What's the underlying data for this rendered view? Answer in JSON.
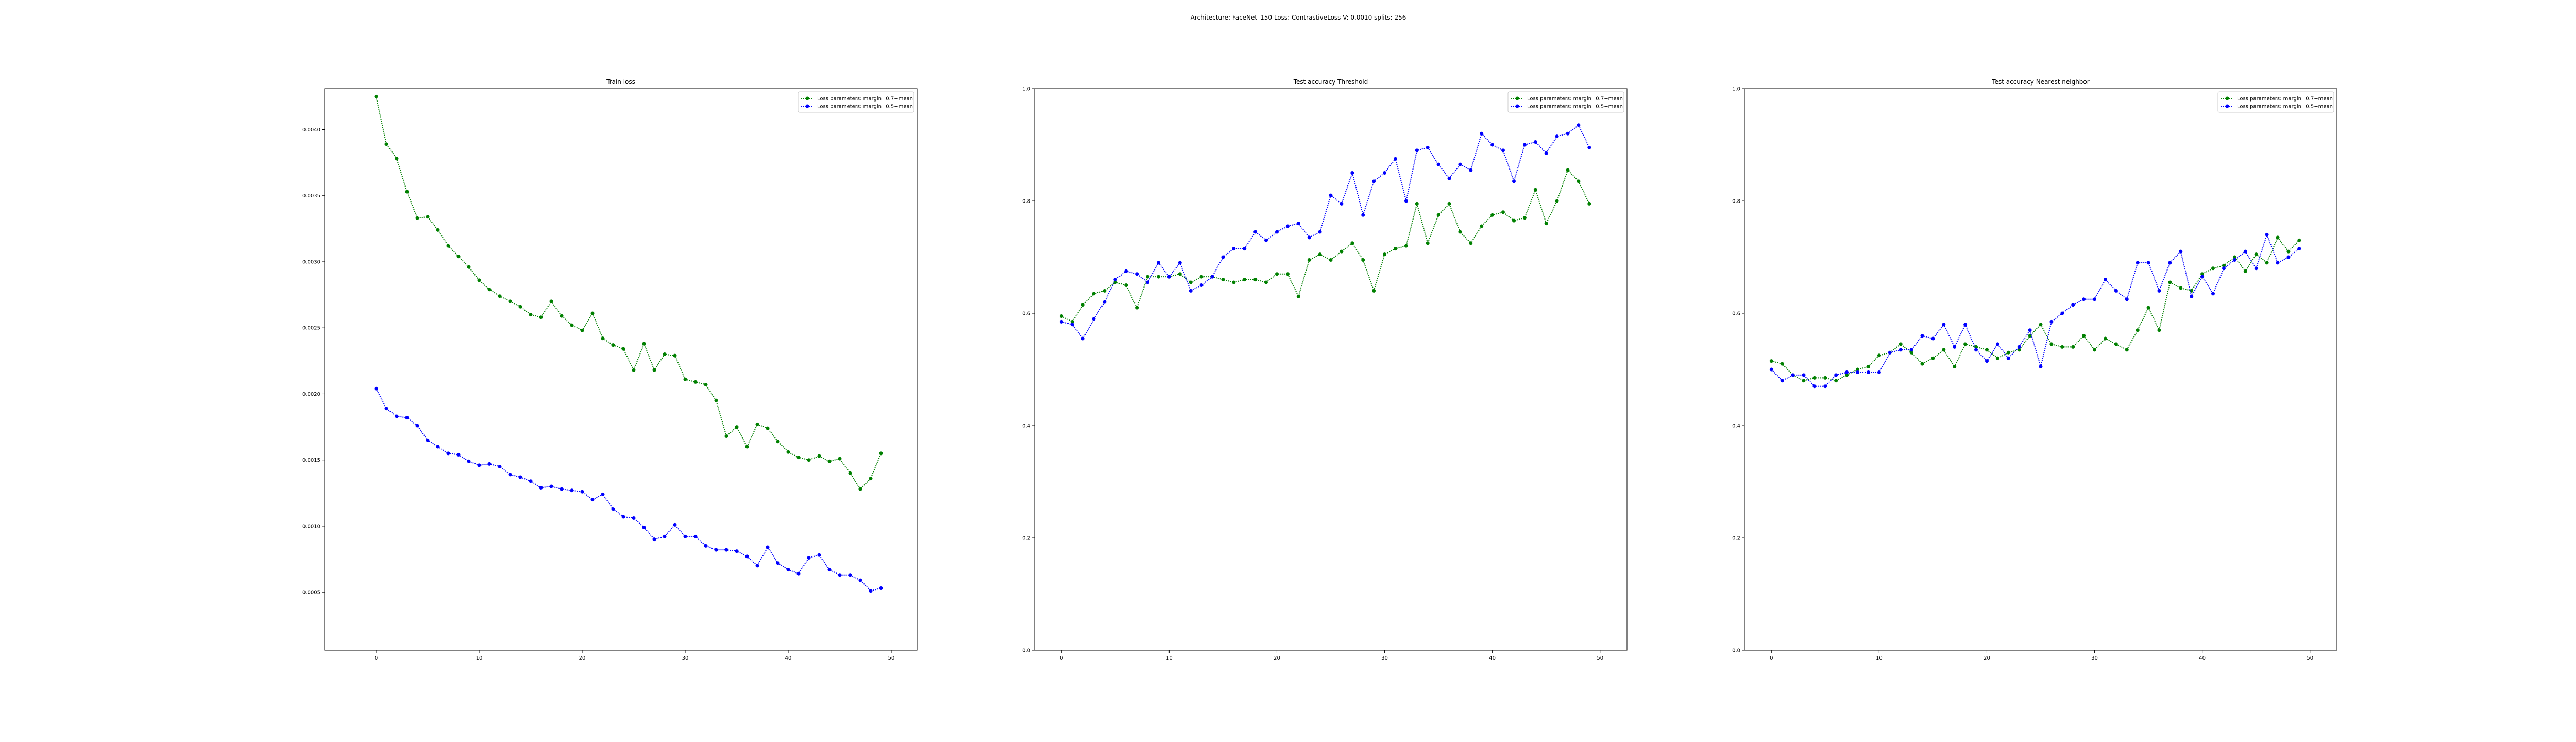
{
  "suptitle": "Architecture: FaceNet_150 Loss: ContrastiveLoss V: 0.0010 splits: 256",
  "colors": {
    "series_1": "#008000",
    "series_2": "#0000ff"
  },
  "chart_data": [
    {
      "type": "line",
      "title": "Train loss",
      "xlabel": "",
      "ylabel": "",
      "xlim": [
        -5,
        52.5
      ],
      "ylim": [
        6e-05,
        0.00431
      ],
      "x_ticks": [
        0,
        10,
        20,
        30,
        40,
        50
      ],
      "y_ticks": [
        0.0005,
        0.001,
        0.0015,
        0.002,
        0.0025,
        0.003,
        0.0035,
        0.004
      ],
      "y_tick_labels": [
        "0.0005",
        "0.0010",
        "0.0015",
        "0.0020",
        "0.0025",
        "0.0030",
        "0.0035",
        "0.0040"
      ],
      "legend_position": "top-right",
      "grid": false,
      "x": [
        0,
        1,
        2,
        3,
        4,
        5,
        6,
        7,
        8,
        9,
        10,
        11,
        12,
        13,
        14,
        15,
        16,
        17,
        18,
        19,
        20,
        21,
        22,
        23,
        24,
        25,
        26,
        27,
        28,
        29,
        30,
        31,
        32,
        33,
        34,
        35,
        36,
        37,
        38,
        39,
        40,
        41,
        42,
        43,
        44,
        45,
        46,
        47,
        48,
        49
      ],
      "series": [
        {
          "name": "Loss parameters: margin=0.7+mean",
          "values": [
            0.00425,
            0.00389,
            0.00378,
            0.00353,
            0.00333,
            0.00334,
            0.00324,
            0.00312,
            0.00304,
            0.00296,
            0.00286,
            0.00279,
            0.00274,
            0.0027,
            0.00266,
            0.0026,
            0.00258,
            0.0027,
            0.00259,
            0.00252,
            0.00248,
            0.00261,
            0.00242,
            0.00237,
            0.00234,
            0.00218,
            0.00238,
            0.00218,
            0.0023,
            0.00229,
            0.00211,
            0.00209,
            0.00207,
            0.00195,
            0.00168,
            0.00175,
            0.0016,
            0.00177,
            0.00174,
            0.00164,
            0.00156,
            0.00152,
            0.0015,
            0.00153,
            0.00149,
            0.00151,
            0.0014,
            0.00128,
            0.00136,
            0.00155
          ]
        },
        {
          "name": "Loss parameters: margin=0.5+mean",
          "values": [
            0.00204,
            0.00189,
            0.00183,
            0.00182,
            0.00176,
            0.00165,
            0.0016,
            0.00155,
            0.00154,
            0.00149,
            0.00146,
            0.00147,
            0.00145,
            0.00139,
            0.00137,
            0.00134,
            0.00129,
            0.0013,
            0.00128,
            0.00127,
            0.00126,
            0.0012,
            0.00124,
            0.00113,
            0.00107,
            0.00106,
            0.00099,
            0.0009,
            0.00092,
            0.00101,
            0.00092,
            0.00092,
            0.00085,
            0.00082,
            0.00082,
            0.00081,
            0.00077,
            0.0007,
            0.00084,
            0.00072,
            0.00067,
            0.00064,
            0.00076,
            0.00078,
            0.00067,
            0.00063,
            0.00063,
            0.00059,
            0.00051,
            0.00053
          ]
        }
      ]
    },
    {
      "type": "line",
      "title": "Test accuracy Threshold",
      "xlabel": "",
      "ylabel": "",
      "xlim": [
        -2.5,
        52.5
      ],
      "ylim": [
        0.0,
        1.0
      ],
      "x_ticks": [
        0,
        10,
        20,
        30,
        40,
        50
      ],
      "y_ticks": [
        0.0,
        0.2,
        0.4,
        0.6,
        0.8,
        1.0
      ],
      "y_tick_labels": [
        "0.0",
        "0.2",
        "0.4",
        "0.6",
        "0.8",
        "1.0"
      ],
      "legend_position": "top-right",
      "grid": false,
      "x": [
        0,
        1,
        2,
        3,
        4,
        5,
        6,
        7,
        8,
        9,
        10,
        11,
        12,
        13,
        14,
        15,
        16,
        17,
        18,
        19,
        20,
        21,
        22,
        23,
        24,
        25,
        26,
        27,
        28,
        29,
        30,
        31,
        32,
        33,
        34,
        35,
        36,
        37,
        38,
        39,
        40,
        41,
        42,
        43,
        44,
        45,
        46,
        47,
        48,
        49
      ],
      "series": [
        {
          "name": "Loss parameters: margin=0.7+mean",
          "values": [
            0.595,
            0.585,
            0.615,
            0.635,
            0.64,
            0.655,
            0.65,
            0.61,
            0.665,
            0.665,
            0.665,
            0.67,
            0.655,
            0.665,
            0.665,
            0.66,
            0.655,
            0.66,
            0.66,
            0.655,
            0.67,
            0.67,
            0.63,
            0.695,
            0.705,
            0.695,
            0.71,
            0.725,
            0.695,
            0.64,
            0.705,
            0.715,
            0.72,
            0.795,
            0.725,
            0.775,
            0.795,
            0.745,
            0.725,
            0.755,
            0.775,
            0.78,
            0.765,
            0.77,
            0.82,
            0.76,
            0.8,
            0.855,
            0.835,
            0.795
          ]
        },
        {
          "name": "Loss parameters: margin=0.5+mean",
          "values": [
            0.585,
            0.58,
            0.555,
            0.59,
            0.62,
            0.66,
            0.675,
            0.67,
            0.655,
            0.69,
            0.665,
            0.69,
            0.64,
            0.65,
            0.665,
            0.7,
            0.715,
            0.715,
            0.745,
            0.73,
            0.745,
            0.755,
            0.76,
            0.735,
            0.745,
            0.81,
            0.795,
            0.85,
            0.775,
            0.835,
            0.85,
            0.875,
            0.8,
            0.89,
            0.895,
            0.865,
            0.84,
            0.865,
            0.855,
            0.92,
            0.9,
            0.89,
            0.835,
            0.9,
            0.905,
            0.885,
            0.915,
            0.92,
            0.935,
            0.895
          ]
        }
      ]
    },
    {
      "type": "line",
      "title": "Test accuracy Nearest neighbor",
      "xlabel": "",
      "ylabel": "",
      "xlim": [
        -2.5,
        52.5
      ],
      "ylim": [
        0.0,
        1.0
      ],
      "x_ticks": [
        0,
        10,
        20,
        30,
        40,
        50
      ],
      "y_ticks": [
        0.0,
        0.2,
        0.4,
        0.6,
        0.8,
        1.0
      ],
      "y_tick_labels": [
        "0.0",
        "0.2",
        "0.4",
        "0.6",
        "0.8",
        "1.0"
      ],
      "legend_position": "top-right",
      "grid": false,
      "x": [
        0,
        1,
        2,
        3,
        4,
        5,
        6,
        7,
        8,
        9,
        10,
        11,
        12,
        13,
        14,
        15,
        16,
        17,
        18,
        19,
        20,
        21,
        22,
        23,
        24,
        25,
        26,
        27,
        28,
        29,
        30,
        31,
        32,
        33,
        34,
        35,
        36,
        37,
        38,
        39,
        40,
        41,
        42,
        43,
        44,
        45,
        46,
        47,
        48,
        49
      ],
      "series": [
        {
          "name": "Loss parameters: margin=0.7+mean",
          "values": [
            0.515,
            0.51,
            0.49,
            0.48,
            0.485,
            0.485,
            0.48,
            0.49,
            0.5,
            0.505,
            0.525,
            0.53,
            0.545,
            0.53,
            0.51,
            0.52,
            0.535,
            0.505,
            0.545,
            0.54,
            0.535,
            0.52,
            0.53,
            0.535,
            0.56,
            0.58,
            0.545,
            0.54,
            0.54,
            0.56,
            0.535,
            0.555,
            0.545,
            0.535,
            0.57,
            0.61,
            0.57,
            0.655,
            0.645,
            0.64,
            0.67,
            0.68,
            0.685,
            0.7,
            0.675,
            0.705,
            0.69,
            0.735,
            0.71,
            0.73
          ]
        },
        {
          "name": "Loss parameters: margin=0.5+mean",
          "values": [
            0.5,
            0.48,
            0.49,
            0.49,
            0.47,
            0.47,
            0.49,
            0.495,
            0.495,
            0.495,
            0.495,
            0.53,
            0.535,
            0.535,
            0.56,
            0.555,
            0.58,
            0.54,
            0.58,
            0.535,
            0.515,
            0.545,
            0.52,
            0.54,
            0.57,
            0.505,
            0.585,
            0.6,
            0.615,
            0.625,
            0.625,
            0.66,
            0.64,
            0.625,
            0.69,
            0.69,
            0.64,
            0.69,
            0.71,
            0.63,
            0.665,
            0.635,
            0.68,
            0.695,
            0.71,
            0.68,
            0.74,
            0.69,
            0.7,
            0.715
          ]
        }
      ]
    }
  ]
}
